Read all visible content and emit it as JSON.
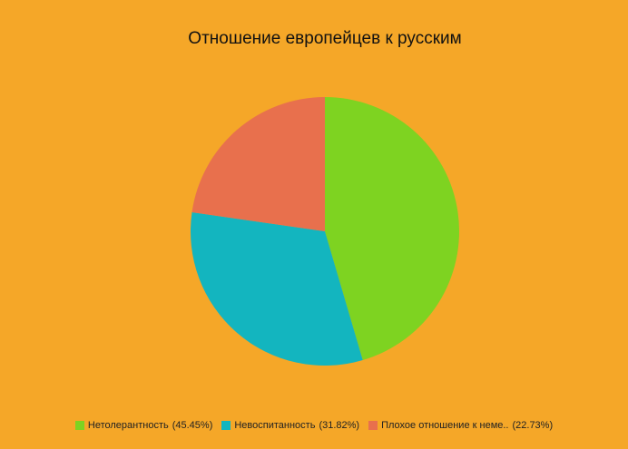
{
  "chart_data": {
    "type": "pie",
    "title": "Отношение европейцев к русским",
    "categories": [
      "Нетолерантность",
      "Невоспитанность",
      "Плохое отношение к неме.."
    ],
    "values": [
      45.45,
      31.82,
      22.73
    ],
    "value_labels": [
      "(45.45%)",
      "(31.82%)",
      "(22.73%)"
    ],
    "colors": [
      "#7ed321",
      "#13b5bf",
      "#e8704d"
    ],
    "legend": "bottom"
  }
}
